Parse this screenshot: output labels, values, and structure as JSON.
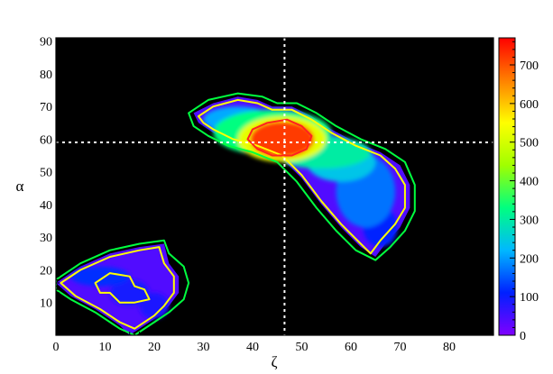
{
  "chart_data": {
    "type": "heatmap",
    "title": "",
    "xlabel": "ζ",
    "ylabel": "α",
    "xlim": [
      0,
      89
    ],
    "ylim": [
      0,
      91
    ],
    "x_ticks": [
      "0",
      "10",
      "20",
      "30",
      "40",
      "50",
      "60",
      "70",
      "80"
    ],
    "y_ticks": [
      "10",
      "20",
      "30",
      "40",
      "50",
      "60",
      "70",
      "80",
      "90"
    ],
    "colorbar": {
      "range": [
        0,
        770
      ],
      "ticks": [
        "0",
        "100",
        "200",
        "300",
        "400",
        "500",
        "600",
        "700"
      ],
      "colors": [
        "#8000ff",
        "#0020ff",
        "#00b8ff",
        "#00ff80",
        "#a0ff00",
        "#ffff00",
        "#ff8000",
        "#ff0000"
      ]
    },
    "background_color": "#000000",
    "crosshair": {
      "x": 46.5,
      "y": 59,
      "style": "dotted",
      "color": "#ffffff"
    },
    "peak": {
      "x": 46.5,
      "y": 60.5,
      "value": 770
    },
    "regions": [
      {
        "name": "main-band",
        "boundary": [
          [
            28,
            68
          ],
          [
            32,
            71
          ],
          [
            37,
            73
          ],
          [
            41,
            72
          ],
          [
            44,
            70
          ],
          [
            48,
            70
          ],
          [
            52,
            67
          ],
          [
            56,
            63
          ],
          [
            61,
            59
          ],
          [
            66,
            56
          ],
          [
            70,
            52
          ],
          [
            72,
            46
          ],
          [
            72,
            39
          ],
          [
            70,
            33
          ],
          [
            67,
            28
          ],
          [
            65,
            24
          ],
          [
            62,
            27
          ],
          [
            58,
            33
          ],
          [
            54,
            40
          ],
          [
            50,
            48
          ],
          [
            46,
            54
          ],
          [
            41,
            57
          ],
          [
            36,
            59
          ],
          [
            32,
            62
          ],
          [
            29,
            65
          ]
        ]
      },
      {
        "name": "lower-left-patch",
        "boundary": [
          [
            0,
            16
          ],
          [
            5,
            21
          ],
          [
            11,
            25
          ],
          [
            17,
            27
          ],
          [
            22,
            28
          ],
          [
            23,
            22
          ],
          [
            25,
            18
          ],
          [
            25,
            13
          ],
          [
            23,
            9
          ],
          [
            20,
            5
          ],
          [
            17,
            2
          ],
          [
            15,
            0
          ],
          [
            13,
            3
          ],
          [
            8,
            8
          ],
          [
            3,
            12
          ]
        ]
      }
    ],
    "blobs": [
      {
        "x": 46,
        "y": 60,
        "rx": 6.5,
        "ry": 5.5,
        "value": 720
      },
      {
        "x": 46,
        "y": 60,
        "rx": 9,
        "ry": 7,
        "value": 520
      },
      {
        "x": 44,
        "y": 62,
        "rx": 12,
        "ry": 7,
        "value": 330
      },
      {
        "x": 54,
        "y": 56,
        "rx": 10,
        "ry": 5,
        "value": 300
      },
      {
        "x": 37,
        "y": 66,
        "rx": 7,
        "ry": 4,
        "value": 210
      },
      {
        "x": 63,
        "y": 44,
        "rx": 6,
        "ry": 11,
        "value": 170
      },
      {
        "x": 58,
        "y": 53,
        "rx": 7,
        "ry": 6,
        "value": 240
      },
      {
        "x": 66,
        "y": 33,
        "rx": 3.5,
        "ry": 6,
        "value": 110
      },
      {
        "x": 9,
        "y": 18,
        "rx": 6,
        "ry": 3,
        "value": 120
      },
      {
        "x": 15,
        "y": 13,
        "rx": 4,
        "ry": 4,
        "value": 90
      },
      {
        "x": 20,
        "y": 9,
        "rx": 3,
        "ry": 4,
        "value": 85
      }
    ],
    "contours": [
      {
        "level": 20,
        "color": "#00ff40",
        "points": [
          [
            27,
            68
          ],
          [
            31,
            72
          ],
          [
            37,
            74
          ],
          [
            42,
            73
          ],
          [
            45,
            71
          ],
          [
            49,
            71
          ],
          [
            53,
            68
          ],
          [
            57,
            64
          ],
          [
            62,
            60
          ],
          [
            67,
            57
          ],
          [
            71,
            53
          ],
          [
            73,
            46
          ],
          [
            73,
            38
          ],
          [
            71,
            32
          ],
          [
            68,
            27
          ],
          [
            65,
            23
          ],
          [
            61,
            26
          ],
          [
            57,
            32
          ],
          [
            53,
            39
          ],
          [
            49,
            47
          ],
          [
            45,
            53
          ],
          [
            40,
            56
          ],
          [
            35,
            58
          ],
          [
            31,
            61
          ],
          [
            28,
            64
          ]
        ]
      },
      {
        "level": 50,
        "color": "#ffff00",
        "points": [
          [
            29,
            67
          ],
          [
            32,
            70
          ],
          [
            37,
            72
          ],
          [
            41,
            71
          ],
          [
            44,
            69
          ],
          [
            48,
            69
          ],
          [
            52,
            66
          ],
          [
            56,
            62
          ],
          [
            61,
            58
          ],
          [
            66,
            55
          ],
          [
            69,
            51
          ],
          [
            71,
            46
          ],
          [
            71,
            39
          ],
          [
            69,
            34
          ],
          [
            66,
            29
          ],
          [
            64,
            25
          ],
          [
            62,
            28
          ],
          [
            58,
            34
          ],
          [
            54,
            41
          ],
          [
            50,
            49
          ],
          [
            46,
            55
          ],
          [
            41,
            58
          ],
          [
            36,
            60
          ],
          [
            32,
            63
          ],
          [
            30,
            65
          ]
        ]
      },
      {
        "level": 600,
        "color": "#ff2020",
        "points": [
          [
            40,
            63
          ],
          [
            43,
            65
          ],
          [
            47,
            66
          ],
          [
            50,
            64
          ],
          [
            52,
            61
          ],
          [
            51,
            57
          ],
          [
            48,
            55
          ],
          [
            44,
            55
          ],
          [
            41,
            57
          ],
          [
            39,
            60
          ]
        ]
      },
      {
        "level": 20,
        "color": "#00ff40",
        "points": [
          [
            0,
            17
          ],
          [
            5,
            22
          ],
          [
            11,
            26
          ],
          [
            17,
            28
          ],
          [
            22,
            29
          ],
          [
            23,
            25
          ],
          [
            26,
            21
          ],
          [
            27,
            16
          ],
          [
            26,
            11
          ],
          [
            23,
            7
          ],
          [
            20,
            4
          ],
          [
            16,
            0
          ],
          [
            13,
            2
          ],
          [
            8,
            7
          ],
          [
            3,
            11
          ],
          [
            0,
            14
          ]
        ]
      },
      {
        "level": 50,
        "color": "#ffff00",
        "points": [
          [
            1,
            16
          ],
          [
            5,
            20
          ],
          [
            11,
            24
          ],
          [
            17,
            26
          ],
          [
            21,
            27
          ],
          [
            22,
            22
          ],
          [
            24,
            18
          ],
          [
            24,
            13
          ],
          [
            22,
            9
          ],
          [
            20,
            6
          ],
          [
            16,
            2
          ],
          [
            13,
            4
          ],
          [
            9,
            8
          ],
          [
            4,
            12
          ]
        ]
      },
      {
        "level": 50,
        "color": "#ffff00",
        "points": [
          [
            8,
            16
          ],
          [
            11,
            19
          ],
          [
            15,
            18
          ],
          [
            16,
            15
          ],
          [
            18,
            14
          ],
          [
            19,
            11
          ],
          [
            16,
            10
          ],
          [
            13,
            10
          ],
          [
            11,
            13
          ],
          [
            9,
            13
          ]
        ]
      }
    ]
  }
}
